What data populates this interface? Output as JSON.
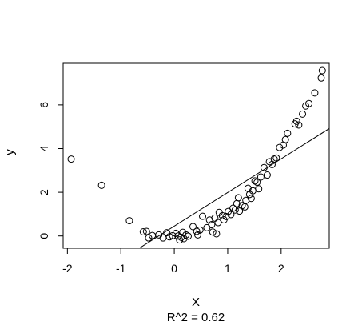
{
  "chart_data": {
    "type": "scatter",
    "title": "",
    "xlabel": "X",
    "ylabel": "y",
    "annotation": "R^2 = 0.62",
    "xlim": [
      -2.08,
      2.9
    ],
    "ylim": [
      -0.56,
      7.9
    ],
    "xticks": [
      -2,
      -1,
      0,
      1,
      2
    ],
    "xtick_labels": [
      "-2",
      "-1",
      "0",
      "1",
      "2"
    ],
    "yticks": [
      0,
      2,
      4,
      6
    ],
    "ytick_labels": [
      "0",
      "2",
      "4",
      "6"
    ],
    "grid": false,
    "legend": "none",
    "marker": "open-circle",
    "fit_line": {
      "intercept": 0.45,
      "slope": 1.54
    },
    "points": [
      {
        "x": -1.93,
        "y": 3.52
      },
      {
        "x": -1.36,
        "y": 2.32
      },
      {
        "x": -0.84,
        "y": 0.7
      },
      {
        "x": -0.58,
        "y": 0.19
      },
      {
        "x": -0.52,
        "y": 0.21
      },
      {
        "x": -0.48,
        "y": -0.09
      },
      {
        "x": -0.41,
        "y": 0.02
      },
      {
        "x": -0.29,
        "y": 0.05
      },
      {
        "x": -0.21,
        "y": -0.09
      },
      {
        "x": -0.14,
        "y": 0.15
      },
      {
        "x": -0.09,
        "y": -0.04
      },
      {
        "x": -0.03,
        "y": 0.01
      },
      {
        "x": 0.03,
        "y": 0.12
      },
      {
        "x": 0.07,
        "y": 0.0
      },
      {
        "x": 0.1,
        "y": -0.18
      },
      {
        "x": 0.13,
        "y": -0.06
      },
      {
        "x": 0.16,
        "y": 0.17
      },
      {
        "x": 0.18,
        "y": -0.12
      },
      {
        "x": 0.22,
        "y": 0.05
      },
      {
        "x": 0.26,
        "y": -0.01
      },
      {
        "x": 0.35,
        "y": 0.43
      },
      {
        "x": 0.42,
        "y": 0.21
      },
      {
        "x": 0.44,
        "y": 0.05
      },
      {
        "x": 0.48,
        "y": 0.27
      },
      {
        "x": 0.53,
        "y": 0.9
      },
      {
        "x": 0.61,
        "y": 0.38
      },
      {
        "x": 0.66,
        "y": 0.73
      },
      {
        "x": 0.7,
        "y": 0.52
      },
      {
        "x": 0.72,
        "y": 0.18
      },
      {
        "x": 0.76,
        "y": 0.82
      },
      {
        "x": 0.79,
        "y": 0.1
      },
      {
        "x": 0.82,
        "y": 0.61
      },
      {
        "x": 0.84,
        "y": 1.08
      },
      {
        "x": 0.9,
        "y": 0.93
      },
      {
        "x": 0.93,
        "y": 0.74
      },
      {
        "x": 0.97,
        "y": 0.89
      },
      {
        "x": 1.01,
        "y": 1.12
      },
      {
        "x": 1.06,
        "y": 0.98
      },
      {
        "x": 1.1,
        "y": 1.27
      },
      {
        "x": 1.14,
        "y": 1.19
      },
      {
        "x": 1.17,
        "y": 1.48
      },
      {
        "x": 1.2,
        "y": 1.75
      },
      {
        "x": 1.22,
        "y": 1.14
      },
      {
        "x": 1.27,
        "y": 1.39
      },
      {
        "x": 1.32,
        "y": 1.33
      },
      {
        "x": 1.34,
        "y": 1.63
      },
      {
        "x": 1.38,
        "y": 2.18
      },
      {
        "x": 1.41,
        "y": 1.9
      },
      {
        "x": 1.44,
        "y": 1.72
      },
      {
        "x": 1.47,
        "y": 2.07
      },
      {
        "x": 1.51,
        "y": 2.52
      },
      {
        "x": 1.55,
        "y": 2.46
      },
      {
        "x": 1.58,
        "y": 2.16
      },
      {
        "x": 1.62,
        "y": 2.7
      },
      {
        "x": 1.68,
        "y": 3.13
      },
      {
        "x": 1.74,
        "y": 2.79
      },
      {
        "x": 1.78,
        "y": 3.4
      },
      {
        "x": 1.83,
        "y": 3.27
      },
      {
        "x": 1.87,
        "y": 3.52
      },
      {
        "x": 1.91,
        "y": 3.57
      },
      {
        "x": 1.97,
        "y": 4.05
      },
      {
        "x": 2.04,
        "y": 4.16
      },
      {
        "x": 2.08,
        "y": 4.41
      },
      {
        "x": 2.12,
        "y": 4.7
      },
      {
        "x": 2.26,
        "y": 5.13
      },
      {
        "x": 2.29,
        "y": 5.25
      },
      {
        "x": 2.33,
        "y": 5.08
      },
      {
        "x": 2.4,
        "y": 5.58
      },
      {
        "x": 2.46,
        "y": 5.95
      },
      {
        "x": 2.52,
        "y": 6.06
      },
      {
        "x": 2.63,
        "y": 6.55
      },
      {
        "x": 2.75,
        "y": 7.23
      },
      {
        "x": 2.77,
        "y": 7.57
      }
    ]
  }
}
